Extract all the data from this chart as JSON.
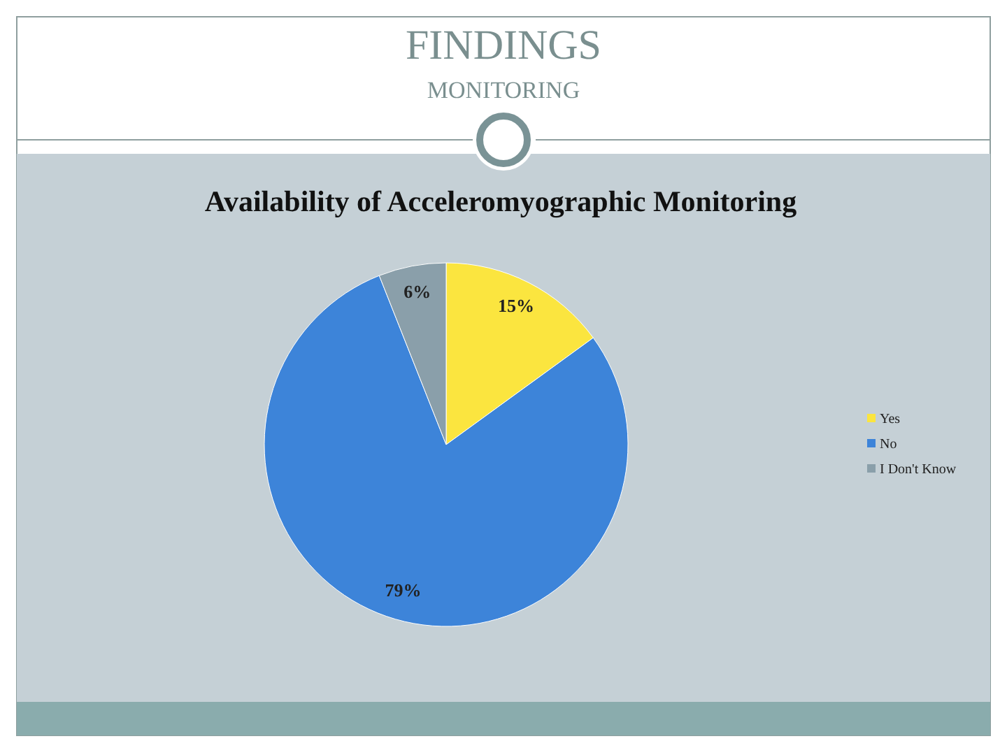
{
  "chart_data": {
    "type": "pie",
    "title": "Availability of Acceleromyographic Monitoring",
    "annotations": [
      "FINDINGS",
      "MONITORING"
    ],
    "categories": [
      "Yes",
      "No",
      "I Don't Know"
    ],
    "values": [
      15,
      79,
      6
    ],
    "colors": [
      "#fbe53f",
      "#3d84d9",
      "#8a9faa"
    ],
    "value_labels": [
      "15%",
      "79%",
      "6%"
    ],
    "legend": "right"
  }
}
